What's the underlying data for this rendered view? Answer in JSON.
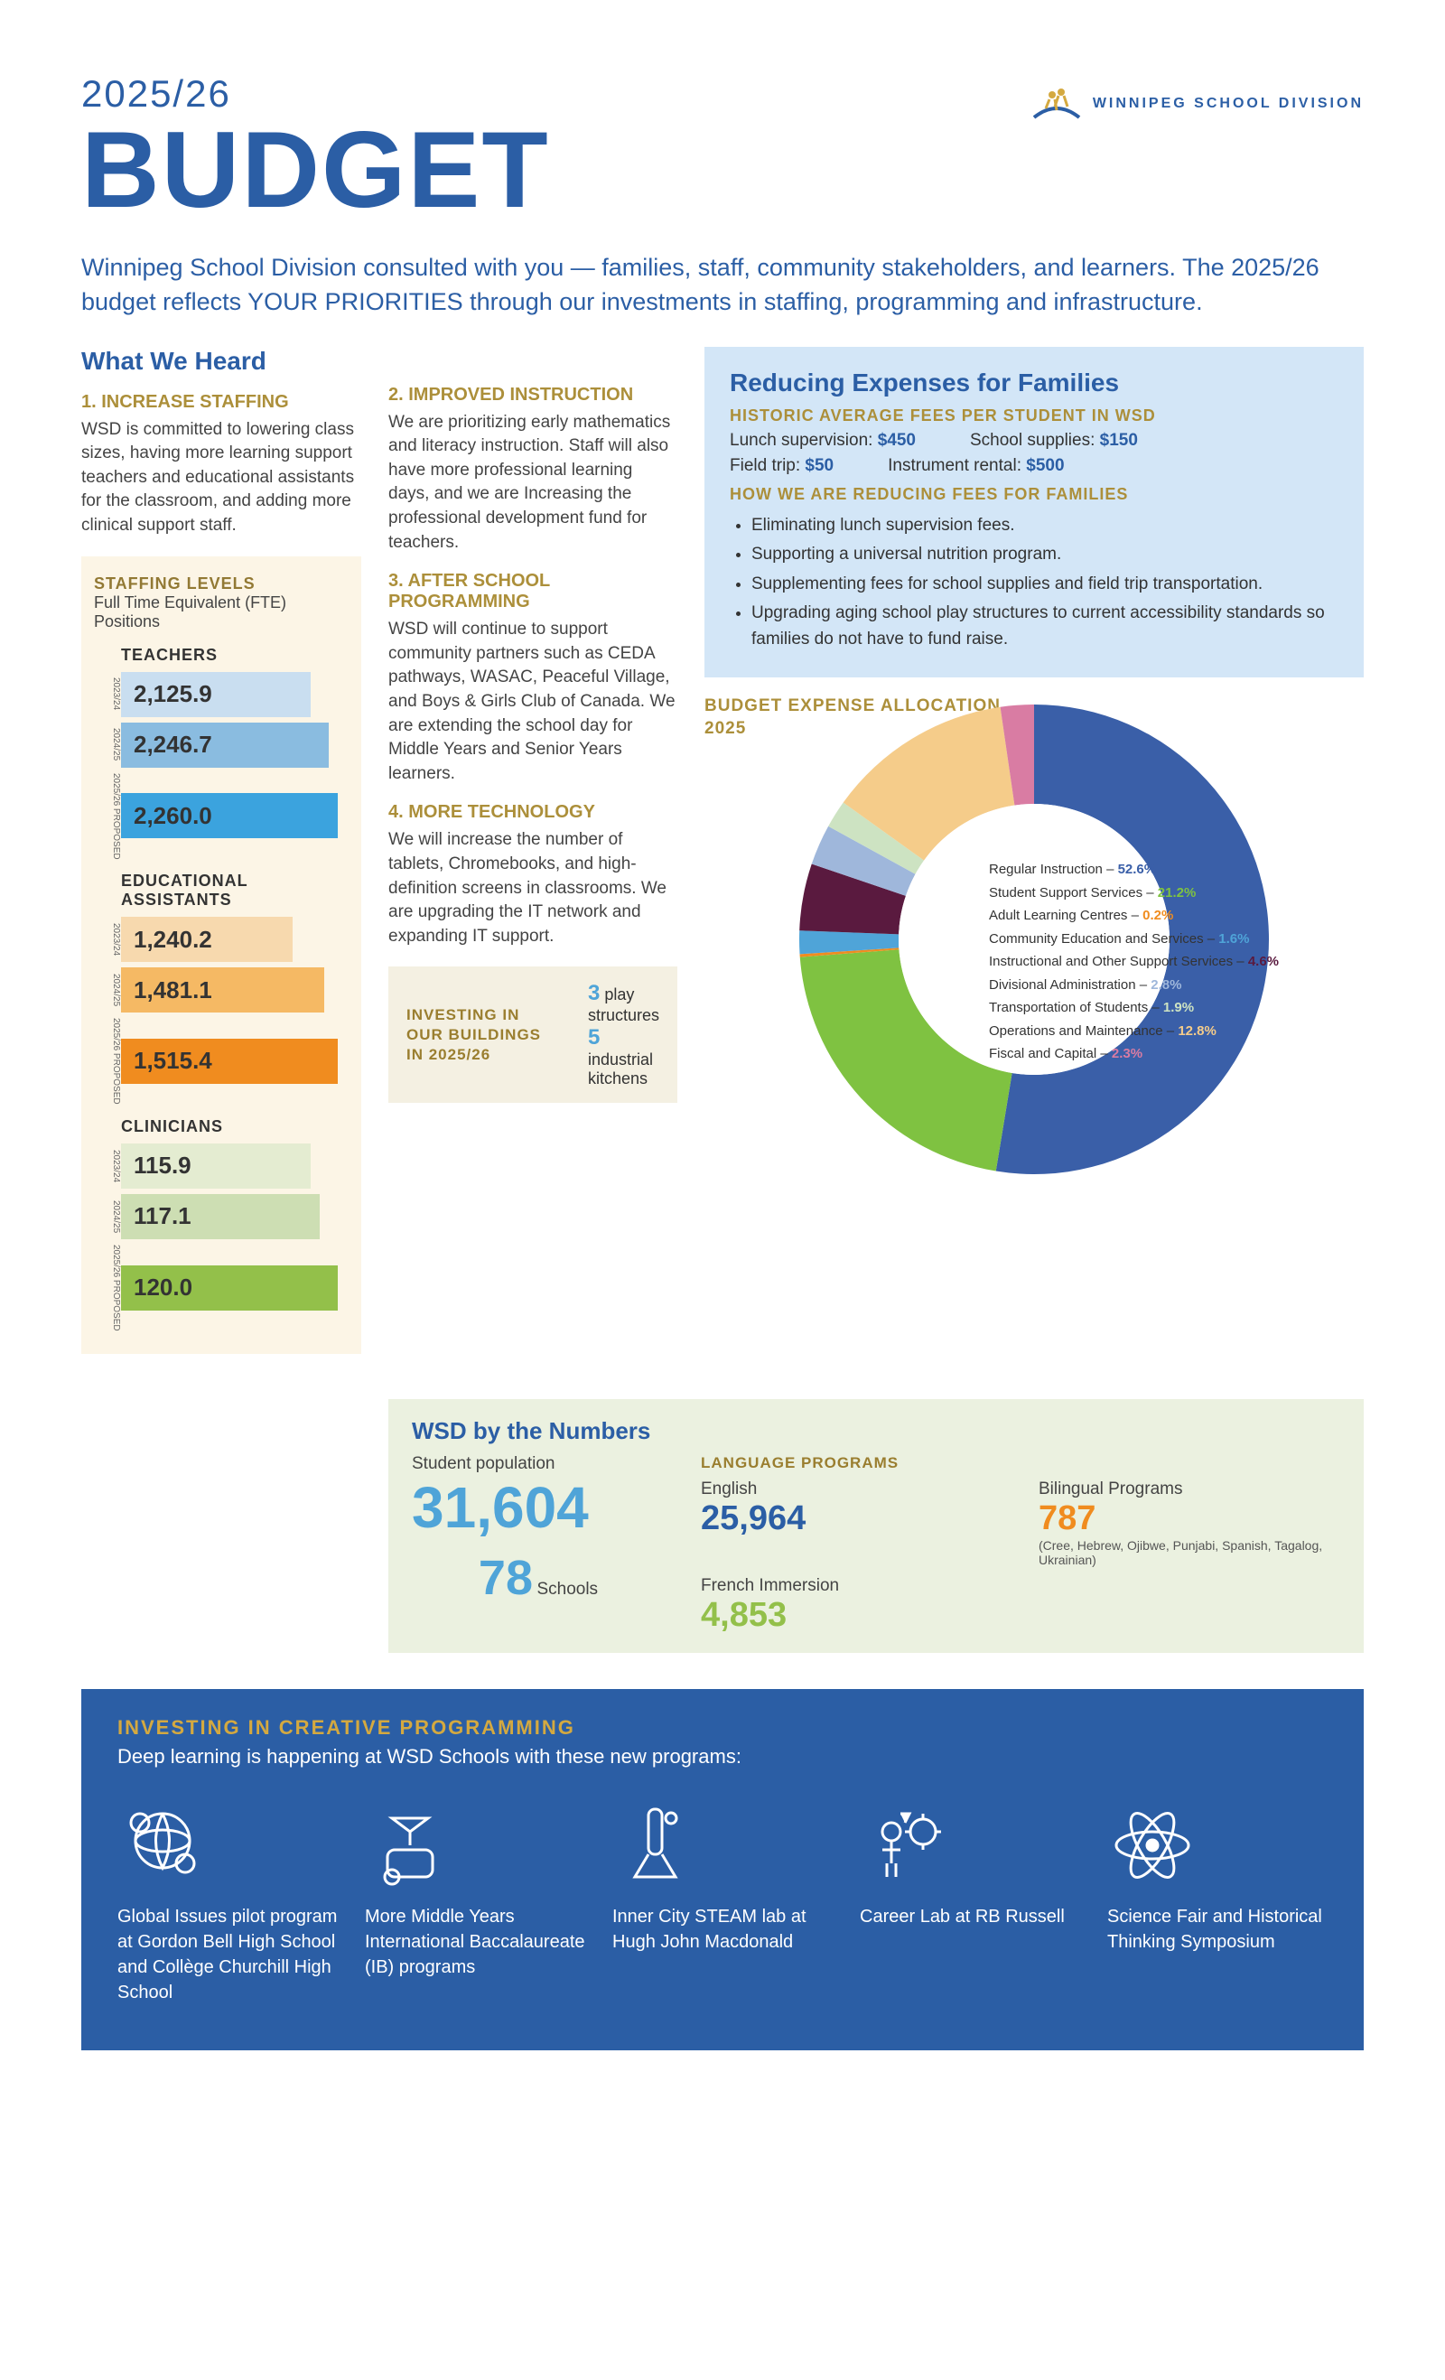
{
  "header": {
    "year": "2025/26",
    "title": "BUDGET",
    "org": "WINNIPEG SCHOOL DIVISION"
  },
  "intro": "Winnipeg School Division consulted with you — families, staff, community stakeholders, and learners. The 2025/26 budget reflects YOUR PRIORITIES through our investments in staffing, programming and infrastructure.",
  "heard": {
    "title": "What We Heard",
    "items": [
      {
        "num": "1. INCREASE STAFFING",
        "body": "WSD is committed to lowering class sizes, having more learning support teachers and educational assistants for the classroom, and adding more clinical support staff."
      },
      {
        "num": "2. IMPROVED INSTRUCTION",
        "body": "We are prioritizing early mathematics and literacy instruction. Staff will also have more professional learning days, and we are Increasing the professional development fund for teachers."
      },
      {
        "num": "3. AFTER SCHOOL PROGRAMMING",
        "body": "WSD will continue to support community partners such as CEDA pathways, WASAC, Peaceful Village, and Boys & Girls Club of Canada. We are extending the school day for Middle Years and Senior Years learners."
      },
      {
        "num": "4. MORE TECHNOLOGY",
        "body": "We will increase the number of tablets, Chromebooks, and high-definition screens in classrooms. We are upgrading the IT network and expanding IT support."
      }
    ]
  },
  "staffing": {
    "head": "STAFFING LEVELS",
    "sub": "Full Time Equivalent (FTE) Positions",
    "year_labels": [
      "2023/24",
      "2024/25",
      "2025/26 PROPOSED"
    ],
    "categories": [
      {
        "title": "TEACHERS",
        "values": [
          "2,125.9",
          "2,246.7",
          "2,260.0"
        ],
        "colors": [
          "#c9def0",
          "#8abce0",
          "#3ba3de"
        ],
        "widths": [
          210,
          230,
          240
        ]
      },
      {
        "title": "EDUCATIONAL ASSISTANTS",
        "values": [
          "1,240.2",
          "1,481.1",
          "1,515.4"
        ],
        "colors": [
          "#f7d9ae",
          "#f5b964",
          "#f08c1f"
        ],
        "widths": [
          190,
          225,
          240
        ]
      },
      {
        "title": "CLINICIANS",
        "values": [
          "115.9",
          "117.1",
          "120.0"
        ],
        "colors": [
          "#e4ecd1",
          "#cddeb3",
          "#93c04a"
        ],
        "widths": [
          210,
          220,
          240
        ]
      }
    ]
  },
  "expenses": {
    "title": "Reducing Expenses for Families",
    "sub1": "HISTORIC AVERAGE FEES PER STUDENT IN WSD",
    "fees": [
      {
        "label": "Lunch supervision:",
        "val": "$450"
      },
      {
        "label": "School supplies:",
        "val": "$150"
      },
      {
        "label": "Field trip:",
        "val": "$50"
      },
      {
        "label": "Instrument rental:",
        "val": "$500"
      }
    ],
    "sub2": "HOW WE ARE REDUCING FEES FOR FAMILIES",
    "bullets": [
      "Eliminating lunch supervision fees.",
      "Supporting a universal nutrition program.",
      "Supplementing fees for school supplies and field trip transportation.",
      "Upgrading aging school play structures to current accessibility standards so families do not have to fund raise."
    ]
  },
  "donut": {
    "title": "BUDGET EXPENSE ALLOCATION",
    "year": "2025",
    "slices": [
      {
        "label": "Regular Instruction",
        "pct": "52.6%",
        "color": "#3a5fa8"
      },
      {
        "label": "Student Support Services",
        "pct": "21.2%",
        "color": "#7fc241"
      },
      {
        "label": "Adult Learning Centres",
        "pct": "0.2%",
        "color": "#f08c1f"
      },
      {
        "label": "Community Education and Services",
        "pct": "1.6%",
        "color": "#4fa4d8"
      },
      {
        "label": "Instructional and Other Support Services",
        "pct": "4.6%",
        "color": "#5a1a3f"
      },
      {
        "label": "Divisional Administration",
        "pct": "2.8%",
        "color": "#9fb7db"
      },
      {
        "label": "Transportation of Students",
        "pct": "1.9%",
        "color": "#cde3c2"
      },
      {
        "label": "Operations and Maintenance",
        "pct": "12.8%",
        "color": "#f5cc8a"
      },
      {
        "label": "Fiscal and Capital",
        "pct": "2.3%",
        "color": "#d97ca3"
      }
    ]
  },
  "invest_buildings": {
    "head": "INVESTING IN OUR BUILDINGS IN 2025/26",
    "items": [
      {
        "num": "3",
        "text": "play structures"
      },
      {
        "num": "5",
        "text": "industrial kitchens"
      }
    ]
  },
  "numbers": {
    "title": "WSD by the Numbers",
    "pop_label": "Student population",
    "pop": "31,604",
    "schools": "78",
    "schools_label": "Schools",
    "lang_head": "LANGUAGE PROGRAMS",
    "langs": [
      {
        "label": "English",
        "val": "25,964",
        "color": "#2b5ea5"
      },
      {
        "label": "Bilingual Programs",
        "val": "787",
        "color": "#f08c1f",
        "note": "(Cree, Hebrew, Ojibwe, Punjabi, Spanish, Tagalog, Ukrainian)"
      },
      {
        "label": "French Immersion",
        "val": "4,853",
        "color": "#93c04a"
      }
    ]
  },
  "creative": {
    "title": "INVESTING IN CREATIVE PROGRAMMING",
    "sub": "Deep learning is happening at WSD Schools with these new programs:",
    "programs": [
      "Global Issues pilot program at Gordon Bell High School and Collège Churchill High School",
      "More Middle Years International Baccalaureate (IB) programs",
      "Inner City STEAM lab at Hugh John Macdonald",
      "Career Lab at RB Russell",
      "Science Fair and Historical Thinking Symposium"
    ]
  },
  "colors": {
    "blue": "#2b5ea5",
    "gold": "#ac8f3a",
    "lightblue": "#4fa4d8"
  }
}
